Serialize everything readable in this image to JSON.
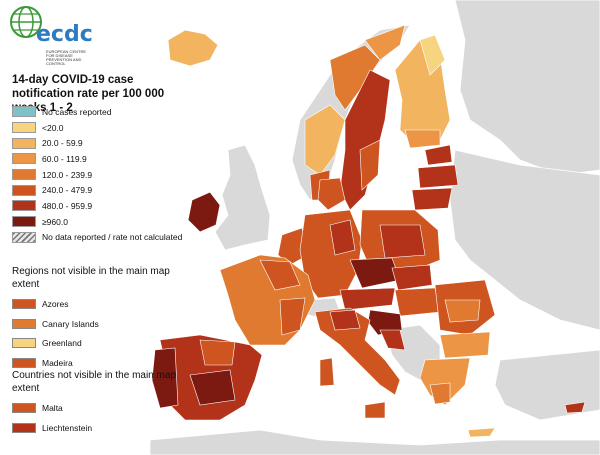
{
  "logo": {
    "text": "ecdc",
    "subtitle": "EUROPEAN CENTRE FOR DISEASE PREVENTION AND CONTROL"
  },
  "title": "14-day COVID-19 case notification rate per 100 000 weeks 1 - 2",
  "legend": [
    {
      "label": "No cases reported",
      "color": "#7fc1c9"
    },
    {
      "label": "<20.0",
      "color": "#f7d480"
    },
    {
      "label": "20.0 - 59.9",
      "color": "#f3b45f"
    },
    {
      "label": "60.0 - 119.9",
      "color": "#ec9645"
    },
    {
      "label": "120.0 - 239.9",
      "color": "#e07a31"
    },
    {
      "label": "240.0 - 479.9",
      "color": "#cf5520"
    },
    {
      "label": "480.0 - 959.9",
      "color": "#b3321a"
    },
    {
      "label": "≥960.0",
      "color": "#7c1a12"
    },
    {
      "label": "No data reported / rate not calculated",
      "color": "hatch"
    }
  ],
  "regions_heading": "Regions not visible in the main map extent",
  "regions": [
    {
      "label": "Azores",
      "color": "#cf5520"
    },
    {
      "label": "Canary Islands",
      "color": "#e07a31"
    },
    {
      "label": "Greenland",
      "color": "#f7d480"
    },
    {
      "label": "Madeira",
      "color": "#cf5520"
    }
  ],
  "countries_heading": "Countries not visible in the main map extent",
  "countries": [
    {
      "label": "Malta",
      "color": "#cf5520"
    },
    {
      "label": "Liechtenstein",
      "color": "#b3321a"
    }
  ]
}
